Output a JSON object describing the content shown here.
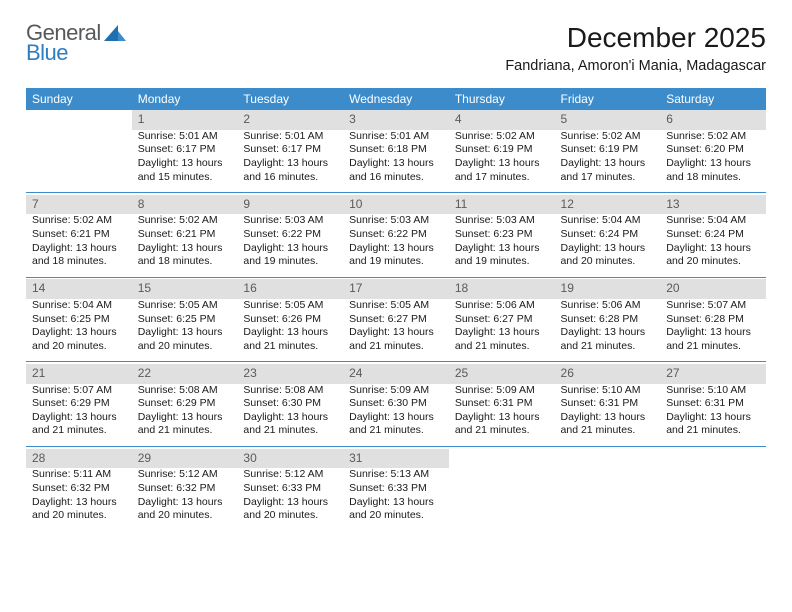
{
  "logo": {
    "general": "General",
    "blue": "Blue"
  },
  "title": "December 2025",
  "location": "Fandriana, Amoron'i Mania, Madagascar",
  "colors": {
    "header_bg": "#3c8ccc",
    "header_fg": "#ffffff",
    "daynum_bg": "#e0e0e0",
    "daynum_fg": "#5a5a5a",
    "rule": "#3c8ccc",
    "text": "#1a1a1a",
    "logo_gray": "#56595c",
    "logo_blue": "#2f7ec2"
  },
  "weekdays": [
    "Sunday",
    "Monday",
    "Tuesday",
    "Wednesday",
    "Thursday",
    "Friday",
    "Saturday"
  ],
  "weeks": [
    {
      "nums": [
        "",
        "1",
        "2",
        "3",
        "4",
        "5",
        "6"
      ],
      "cells": [
        null,
        {
          "sunrise": "5:01 AM",
          "sunset": "6:17 PM",
          "daylight": "13 hours and 15 minutes."
        },
        {
          "sunrise": "5:01 AM",
          "sunset": "6:17 PM",
          "daylight": "13 hours and 16 minutes."
        },
        {
          "sunrise": "5:01 AM",
          "sunset": "6:18 PM",
          "daylight": "13 hours and 16 minutes."
        },
        {
          "sunrise": "5:02 AM",
          "sunset": "6:19 PM",
          "daylight": "13 hours and 17 minutes."
        },
        {
          "sunrise": "5:02 AM",
          "sunset": "6:19 PM",
          "daylight": "13 hours and 17 minutes."
        },
        {
          "sunrise": "5:02 AM",
          "sunset": "6:20 PM",
          "daylight": "13 hours and 18 minutes."
        }
      ]
    },
    {
      "nums": [
        "7",
        "8",
        "9",
        "10",
        "11",
        "12",
        "13"
      ],
      "cells": [
        {
          "sunrise": "5:02 AM",
          "sunset": "6:21 PM",
          "daylight": "13 hours and 18 minutes."
        },
        {
          "sunrise": "5:02 AM",
          "sunset": "6:21 PM",
          "daylight": "13 hours and 18 minutes."
        },
        {
          "sunrise": "5:03 AM",
          "sunset": "6:22 PM",
          "daylight": "13 hours and 19 minutes."
        },
        {
          "sunrise": "5:03 AM",
          "sunset": "6:22 PM",
          "daylight": "13 hours and 19 minutes."
        },
        {
          "sunrise": "5:03 AM",
          "sunset": "6:23 PM",
          "daylight": "13 hours and 19 minutes."
        },
        {
          "sunrise": "5:04 AM",
          "sunset": "6:24 PM",
          "daylight": "13 hours and 20 minutes."
        },
        {
          "sunrise": "5:04 AM",
          "sunset": "6:24 PM",
          "daylight": "13 hours and 20 minutes."
        }
      ]
    },
    {
      "nums": [
        "14",
        "15",
        "16",
        "17",
        "18",
        "19",
        "20"
      ],
      "cells": [
        {
          "sunrise": "5:04 AM",
          "sunset": "6:25 PM",
          "daylight": "13 hours and 20 minutes."
        },
        {
          "sunrise": "5:05 AM",
          "sunset": "6:25 PM",
          "daylight": "13 hours and 20 minutes."
        },
        {
          "sunrise": "5:05 AM",
          "sunset": "6:26 PM",
          "daylight": "13 hours and 21 minutes."
        },
        {
          "sunrise": "5:05 AM",
          "sunset": "6:27 PM",
          "daylight": "13 hours and 21 minutes."
        },
        {
          "sunrise": "5:06 AM",
          "sunset": "6:27 PM",
          "daylight": "13 hours and 21 minutes."
        },
        {
          "sunrise": "5:06 AM",
          "sunset": "6:28 PM",
          "daylight": "13 hours and 21 minutes."
        },
        {
          "sunrise": "5:07 AM",
          "sunset": "6:28 PM",
          "daylight": "13 hours and 21 minutes."
        }
      ]
    },
    {
      "nums": [
        "21",
        "22",
        "23",
        "24",
        "25",
        "26",
        "27"
      ],
      "cells": [
        {
          "sunrise": "5:07 AM",
          "sunset": "6:29 PM",
          "daylight": "13 hours and 21 minutes."
        },
        {
          "sunrise": "5:08 AM",
          "sunset": "6:29 PM",
          "daylight": "13 hours and 21 minutes."
        },
        {
          "sunrise": "5:08 AM",
          "sunset": "6:30 PM",
          "daylight": "13 hours and 21 minutes."
        },
        {
          "sunrise": "5:09 AM",
          "sunset": "6:30 PM",
          "daylight": "13 hours and 21 minutes."
        },
        {
          "sunrise": "5:09 AM",
          "sunset": "6:31 PM",
          "daylight": "13 hours and 21 minutes."
        },
        {
          "sunrise": "5:10 AM",
          "sunset": "6:31 PM",
          "daylight": "13 hours and 21 minutes."
        },
        {
          "sunrise": "5:10 AM",
          "sunset": "6:31 PM",
          "daylight": "13 hours and 21 minutes."
        }
      ]
    },
    {
      "nums": [
        "28",
        "29",
        "30",
        "31",
        "",
        "",
        ""
      ],
      "cells": [
        {
          "sunrise": "5:11 AM",
          "sunset": "6:32 PM",
          "daylight": "13 hours and 20 minutes."
        },
        {
          "sunrise": "5:12 AM",
          "sunset": "6:32 PM",
          "daylight": "13 hours and 20 minutes."
        },
        {
          "sunrise": "5:12 AM",
          "sunset": "6:33 PM",
          "daylight": "13 hours and 20 minutes."
        },
        {
          "sunrise": "5:13 AM",
          "sunset": "6:33 PM",
          "daylight": "13 hours and 20 minutes."
        },
        null,
        null,
        null
      ]
    }
  ],
  "labels": {
    "sunrise": "Sunrise:",
    "sunset": "Sunset:",
    "daylight": "Daylight:"
  }
}
